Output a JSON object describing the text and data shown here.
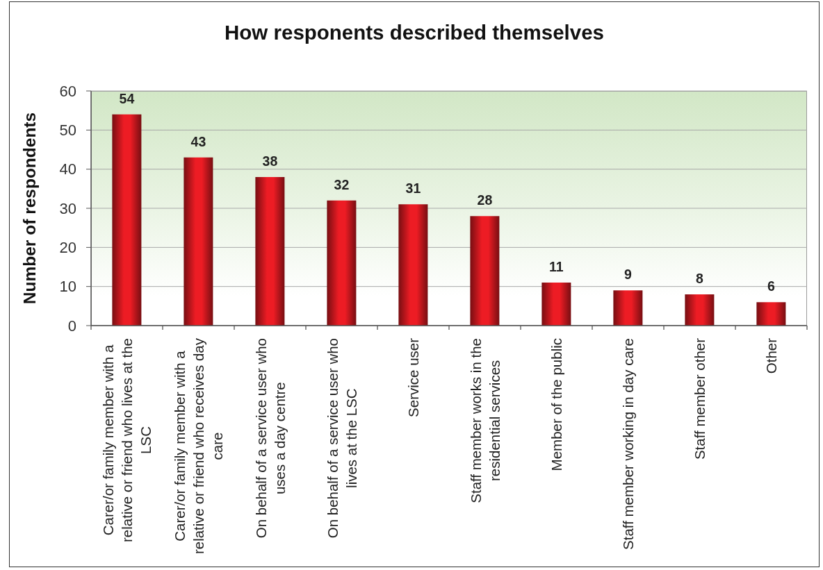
{
  "chart_data": {
    "type": "bar",
    "title": "How responents described themselves",
    "ylabel": "Number of respondents",
    "categories": [
      "Carer/or family member with a relative or friend who lives at the LSC",
      "Carer/or family member with a relative or friend who receives day care",
      "On behalf of a service user who uses a day centre",
      "On behalf of a service user who lives at the LSC",
      "Service user",
      "Staff member works in the residential services",
      "Member of the public",
      "Staff member working in day care",
      "Staff member other",
      "Other"
    ],
    "values": [
      54,
      43,
      38,
      32,
      31,
      28,
      11,
      9,
      8,
      6
    ],
    "color": "#ed1c24",
    "ylim": [
      0,
      60
    ],
    "yticks": [
      0,
      10,
      20,
      30,
      40,
      50,
      60
    ],
    "grid": "y",
    "data_labels": true
  }
}
